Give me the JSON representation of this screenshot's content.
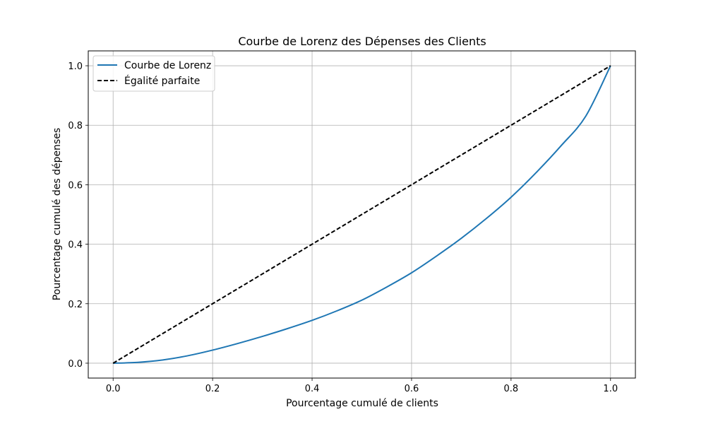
{
  "chart_data": {
    "type": "line",
    "title": "Courbe de Lorenz des Dépenses des Clients",
    "xlabel": "Pourcentage cumulé de clients",
    "ylabel": "Pourcentage cumulé des dépenses",
    "xlim": [
      -0.05,
      1.05
    ],
    "ylim": [
      -0.05,
      1.05
    ],
    "xticks": [
      "0.0",
      "0.2",
      "0.4",
      "0.6",
      "0.8",
      "1.0"
    ],
    "yticks": [
      "0.0",
      "0.2",
      "0.4",
      "0.6",
      "0.8",
      "1.0"
    ],
    "grid": true,
    "legend_position": "top-left",
    "series": [
      {
        "name": "Courbe de Lorenz",
        "color": "#1f77b4",
        "style": "solid",
        "x": [
          0.0,
          0.05,
          0.1,
          0.15,
          0.2,
          0.25,
          0.3,
          0.35,
          0.4,
          0.45,
          0.5,
          0.55,
          0.6,
          0.65,
          0.7,
          0.75,
          0.8,
          0.85,
          0.9,
          0.95,
          1.0
        ],
        "y": [
          0.0,
          0.003,
          0.011,
          0.025,
          0.044,
          0.066,
          0.09,
          0.116,
          0.144,
          0.176,
          0.212,
          0.256,
          0.304,
          0.36,
          0.42,
          0.486,
          0.558,
          0.64,
          0.73,
          0.83,
          1.0
        ]
      },
      {
        "name": "Égalité parfaite",
        "color": "#000000",
        "style": "dashed",
        "x": [
          0.0,
          1.0
        ],
        "y": [
          0.0,
          1.0
        ]
      }
    ]
  }
}
